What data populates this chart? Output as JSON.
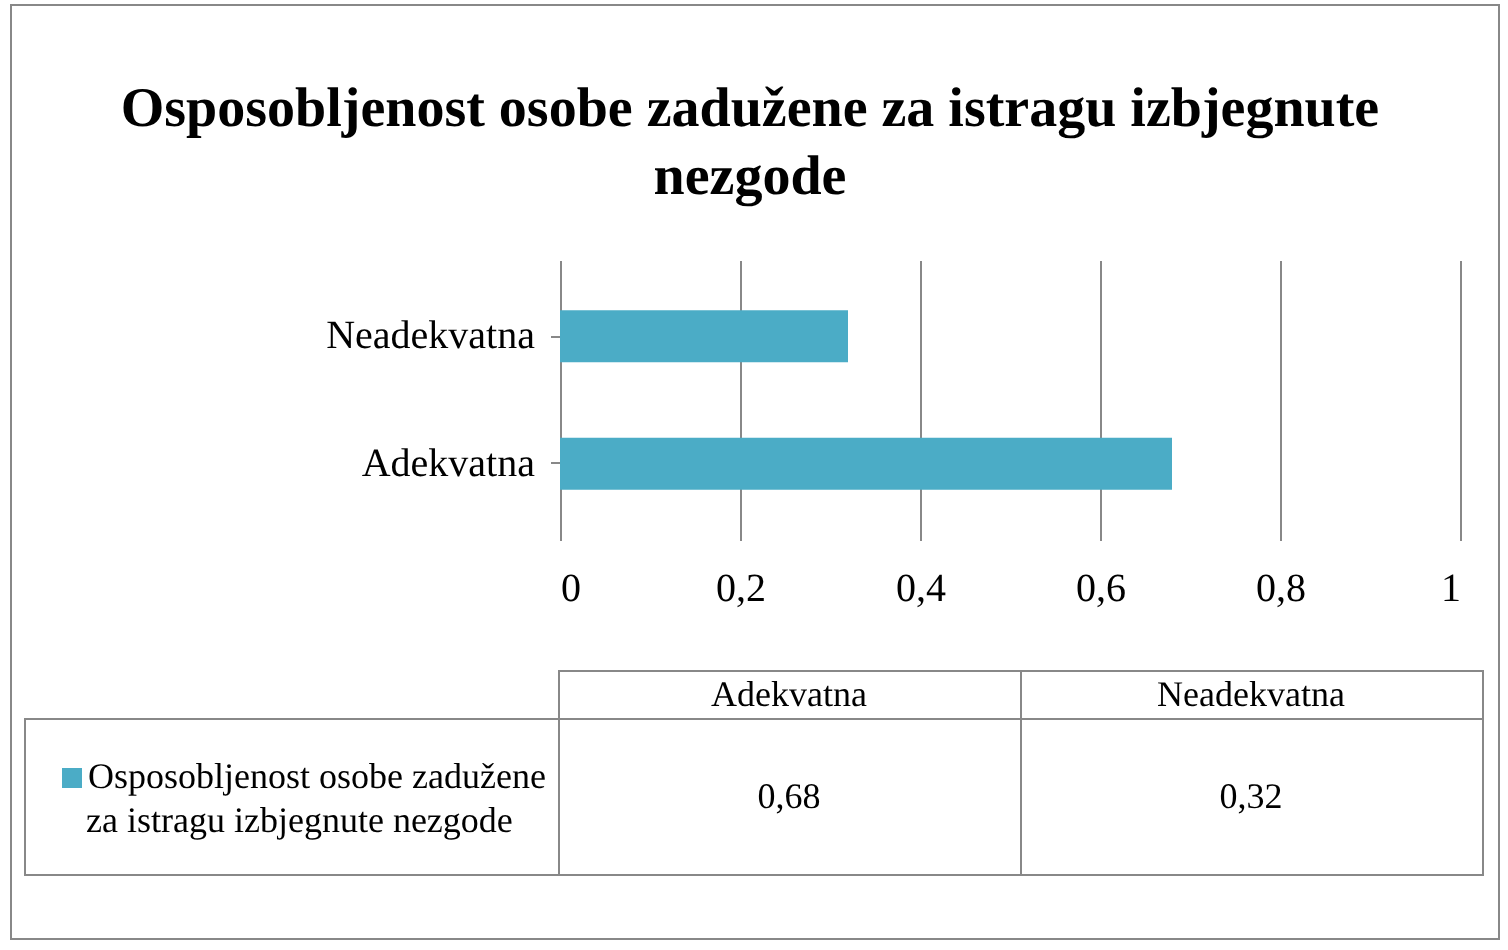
{
  "chart_data": {
    "type": "bar",
    "orientation": "horizontal",
    "title": "Osposobljenost osobe zadužene za istragu izbjegnute nezgode",
    "categories": [
      "Neadekvatna",
      "Adekvatna"
    ],
    "series": [
      {
        "name": "Osposobljenost osobe zadužene za istragu izbjegnute nezgode",
        "color": "#4bacc6",
        "values": [
          0.32,
          0.68
        ]
      }
    ],
    "value_labels": [
      "0,32",
      "0,68"
    ],
    "xlim": [
      0,
      1
    ],
    "xticks": [
      0,
      {
        "value": 0.2,
        "label": "0,2"
      },
      {
        "value": 0.4,
        "label": "0,4"
      },
      {
        "value": 0.6,
        "label": "0,6"
      },
      {
        "value": 0.8,
        "label": "0,8"
      },
      1
    ],
    "grid": "x",
    "legend": "bottom"
  }
}
